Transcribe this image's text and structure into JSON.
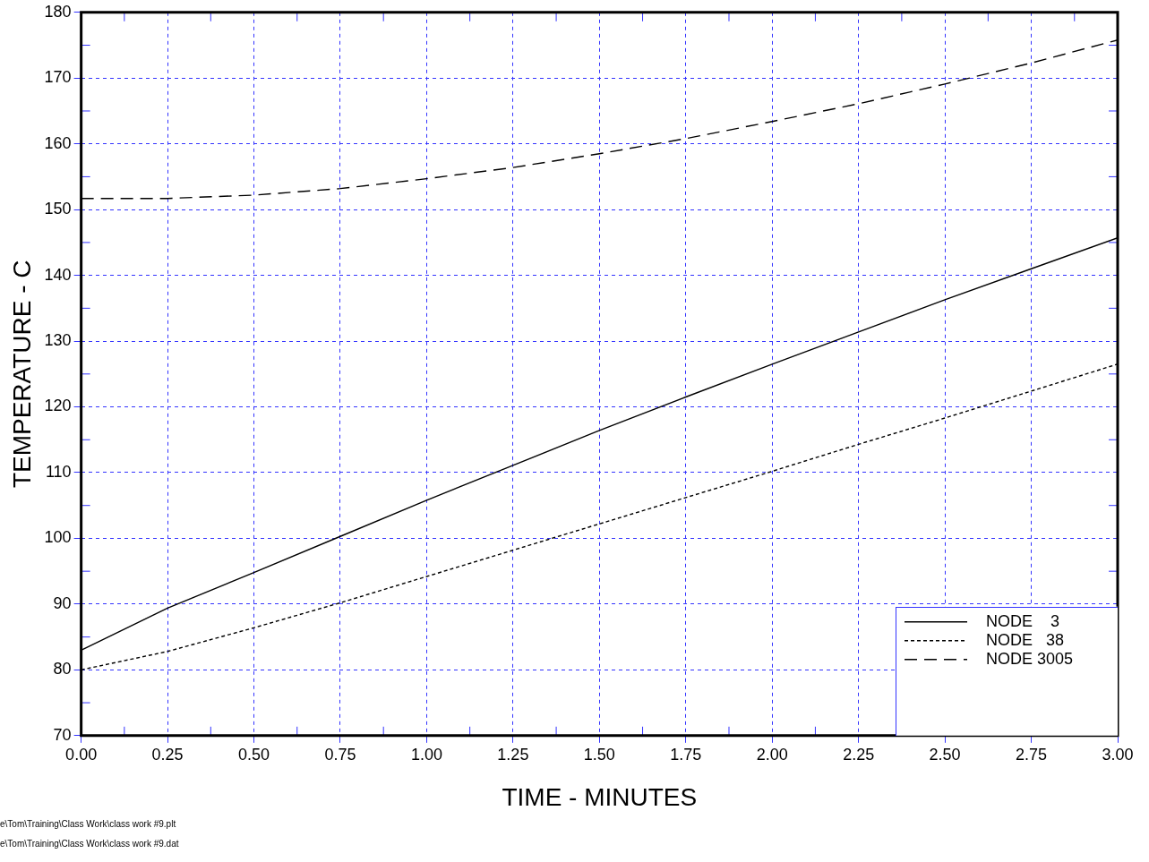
{
  "chart_data": {
    "type": "line",
    "xlabel": "TIME - MINUTES",
    "ylabel": "TEMPERATURE - C",
    "x": [
      0,
      0.25,
      0.5,
      0.75,
      1,
      1.25,
      1.5,
      1.75,
      2,
      2.25,
      2.5,
      2.75,
      3
    ],
    "series": [
      {
        "name": "NODE    3",
        "color": "#000000",
        "line_style": "solid",
        "values": [
          83,
          89.4,
          94.8,
          100.3,
          105.8,
          111.1,
          116.4,
          121.5,
          126.5,
          131.4,
          136.3,
          141,
          145.7
        ]
      },
      {
        "name": "NODE   38",
        "color": "#000000",
        "line_style": "dotted",
        "values": [
          80,
          82.8,
          86.4,
          90.2,
          94.2,
          98.2,
          102.2,
          106.2,
          110.2,
          114.3,
          118.3,
          122.4,
          126.5
        ]
      },
      {
        "name": "NODE 3005",
        "color": "#000000",
        "line_style": "dashed",
        "values": [
          151.7,
          151.7,
          152.2,
          153.2,
          154.7,
          156.4,
          158.5,
          160.8,
          163.4,
          166.1,
          169.1,
          172.3,
          175.8
        ]
      }
    ],
    "xlim": [
      0,
      3
    ],
    "xticks": [
      {
        "value": 0,
        "label": "0.00"
      },
      {
        "value": 0.25,
        "label": "0.25"
      },
      {
        "value": 0.5,
        "label": "0.50"
      },
      {
        "value": 0.75,
        "label": "0.75"
      },
      {
        "value": 1,
        "label": "1.00"
      },
      {
        "value": 1.25,
        "label": "1.25"
      },
      {
        "value": 1.5,
        "label": "1.50"
      },
      {
        "value": 1.75,
        "label": "1.75"
      },
      {
        "value": 2,
        "label": "2.00"
      },
      {
        "value": 2.25,
        "label": "2.25"
      },
      {
        "value": 2.5,
        "label": "2.50"
      },
      {
        "value": 2.75,
        "label": "2.75"
      },
      {
        "value": 3,
        "label": "3.00"
      }
    ],
    "ylim": [
      70,
      180
    ],
    "yticks": [
      70,
      80,
      90,
      100,
      110,
      120,
      130,
      140,
      150,
      160,
      170,
      180
    ],
    "grid": true,
    "legend": "bottom right",
    "marker": "none",
    "annotations": [
      "e\\Tom\\Training\\Class Work\\class work #9.plt",
      "e\\Tom\\Training\\Class Work\\class work #9.dat"
    ]
  }
}
